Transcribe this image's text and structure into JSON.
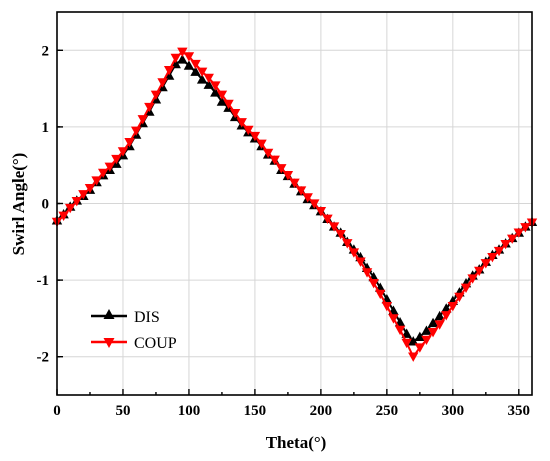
{
  "chart_data": {
    "type": "line",
    "xlabel": "Theta(°)",
    "ylabel": "Swirl Angle(°)",
    "xlim": [
      0,
      360
    ],
    "ylim": [
      -2.5,
      2.5
    ],
    "xticks": [
      0,
      50,
      100,
      150,
      200,
      250,
      300,
      350
    ],
    "yticks": [
      -2,
      -1,
      0,
      1,
      2
    ],
    "grid": true,
    "legend_position": "lower-left",
    "x": [
      0,
      5,
      10,
      15,
      20,
      25,
      30,
      35,
      40,
      45,
      50,
      55,
      60,
      65,
      70,
      75,
      80,
      85,
      90,
      95,
      100,
      105,
      110,
      115,
      120,
      125,
      130,
      135,
      140,
      145,
      150,
      155,
      160,
      165,
      170,
      175,
      180,
      185,
      190,
      195,
      200,
      205,
      210,
      215,
      220,
      225,
      230,
      235,
      240,
      245,
      250,
      255,
      260,
      265,
      270,
      275,
      280,
      285,
      290,
      295,
      300,
      305,
      310,
      315,
      320,
      325,
      330,
      335,
      340,
      345,
      350,
      355,
      360
    ],
    "series": [
      {
        "name": "DIS",
        "color": "#000000",
        "marker": "triangle-up",
        "values": [
          -0.22,
          -0.14,
          -0.04,
          0.04,
          0.1,
          0.18,
          0.28,
          0.37,
          0.44,
          0.52,
          0.63,
          0.75,
          0.9,
          1.05,
          1.2,
          1.36,
          1.52,
          1.67,
          1.82,
          1.88,
          1.8,
          1.72,
          1.62,
          1.55,
          1.45,
          1.33,
          1.25,
          1.13,
          1.02,
          0.93,
          0.85,
          0.75,
          0.64,
          0.56,
          0.44,
          0.36,
          0.26,
          0.16,
          0.06,
          -0.02,
          -0.1,
          -0.2,
          -0.3,
          -0.38,
          -0.5,
          -0.6,
          -0.7,
          -0.84,
          -0.96,
          -1.1,
          -1.25,
          -1.4,
          -1.55,
          -1.7,
          -1.8,
          -1.74,
          -1.66,
          -1.56,
          -1.47,
          -1.37,
          -1.27,
          -1.16,
          -1.04,
          -0.94,
          -0.86,
          -0.76,
          -0.67,
          -0.6,
          -0.52,
          -0.45,
          -0.38,
          -0.3,
          -0.24
        ]
      },
      {
        "name": "COUP",
        "color": "#ff0000",
        "marker": "triangle-down",
        "values": [
          -0.24,
          -0.16,
          -0.06,
          0.03,
          0.12,
          0.2,
          0.3,
          0.4,
          0.48,
          0.58,
          0.68,
          0.8,
          0.95,
          1.1,
          1.26,
          1.42,
          1.58,
          1.74,
          1.9,
          1.98,
          1.92,
          1.82,
          1.72,
          1.64,
          1.54,
          1.42,
          1.3,
          1.18,
          1.06,
          0.96,
          0.88,
          0.78,
          0.66,
          0.57,
          0.46,
          0.37,
          0.27,
          0.17,
          0.08,
          0.0,
          -0.1,
          -0.2,
          -0.3,
          -0.4,
          -0.52,
          -0.64,
          -0.76,
          -0.9,
          -1.04,
          -1.18,
          -1.34,
          -1.5,
          -1.65,
          -1.82,
          -2.0,
          -1.88,
          -1.78,
          -1.68,
          -1.58,
          -1.46,
          -1.34,
          -1.22,
          -1.1,
          -0.98,
          -0.88,
          -0.78,
          -0.7,
          -0.62,
          -0.53,
          -0.46,
          -0.38,
          -0.31,
          -0.25
        ]
      }
    ]
  }
}
